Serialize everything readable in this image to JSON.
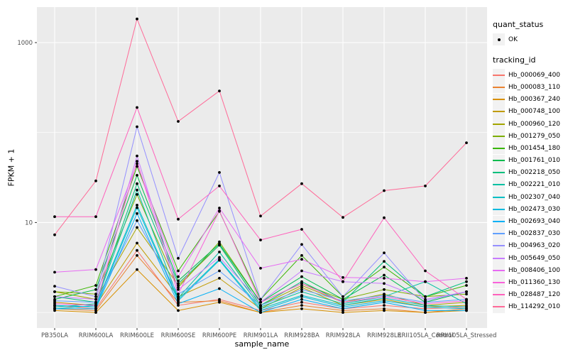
{
  "figure": {
    "panel_bg": "#EBEBEB",
    "grid_color": "#FFFFFF",
    "tick_color": "#333333",
    "tick_label_color": "#4D4D4D",
    "point_color": "#000000"
  },
  "chart_data": {
    "type": "line",
    "x_label": "sample_name",
    "y_label": "FPKM + 1",
    "y_scale": "log10",
    "y_axis_range_approx": [
      0.9,
      2400
    ],
    "y_ticks": [
      {
        "value": 10,
        "label": "10"
      },
      {
        "value": 1000,
        "label": "1000"
      }
    ],
    "y_minor_gridlines": [
      1,
      100
    ],
    "grid": "on",
    "legend_position": "right",
    "categories": [
      "PB350LA",
      "RRIM600LA",
      "RRIM600LE",
      "RRIM600SE",
      "RRIM600PE",
      "RRIM901LA",
      "RRIM928BA",
      "RRIM928LA",
      "RRIM928LE",
      "RRII105LA_Control",
      "RRII105LA_Stressed"
    ],
    "series": [
      {
        "name": "Hb_000069_400",
        "color": "#F8766D",
        "values": [
          1.2,
          1.1,
          4.9,
          1.2,
          1.4,
          1.05,
          1.3,
          1.1,
          1.2,
          1.1,
          1.15
        ]
      },
      {
        "name": "Hb_000083_110",
        "color": "#EA8331",
        "values": [
          1.1,
          1.05,
          4.3,
          1.3,
          1.35,
          1.0,
          1.2,
          1.05,
          1.1,
          1.0,
          1.1
        ]
      },
      {
        "name": "Hb_000367_240",
        "color": "#D89000",
        "values": [
          1.05,
          1.0,
          3.0,
          1.05,
          1.3,
          1.0,
          1.1,
          1.0,
          1.05,
          1.0,
          1.05
        ]
      },
      {
        "name": "Hb_000748_100",
        "color": "#C09B00",
        "values": [
          1.3,
          1.2,
          5.9,
          1.5,
          2.4,
          1.1,
          1.9,
          1.2,
          1.4,
          1.15,
          1.2
        ]
      },
      {
        "name": "Hb_000960_120",
        "color": "#A3A500",
        "values": [
          1.7,
          1.4,
          8.8,
          2.0,
          5.6,
          1.2,
          2.0,
          1.3,
          1.6,
          1.2,
          1.3
        ]
      },
      {
        "name": "Hb_001279_050",
        "color": "#7CAE00",
        "values": [
          1.7,
          1.6,
          20.5,
          1.9,
          6.1,
          1.3,
          2.1,
          1.4,
          1.8,
          1.5,
          1.6
        ]
      },
      {
        "name": "Hb_001454_180",
        "color": "#39B600",
        "values": [
          1.5,
          2.0,
          42,
          2.9,
          13.3,
          1.4,
          4.3,
          1.5,
          3.2,
          1.5,
          2.0
        ]
      },
      {
        "name": "Hb_001761_010",
        "color": "#00BB4E",
        "values": [
          1.4,
          1.8,
          33.5,
          2.25,
          5.8,
          1.3,
          2.5,
          1.4,
          2.6,
          1.3,
          1.7
        ]
      },
      {
        "name": "Hb_002218_050",
        "color": "#00BF7D",
        "values": [
          1.5,
          1.3,
          27,
          2.1,
          5.6,
          1.2,
          2.2,
          1.3,
          3.7,
          1.5,
          2.2
        ]
      },
      {
        "name": "Hb_002221_010",
        "color": "#00C1A3",
        "values": [
          1.15,
          1.25,
          23,
          1.45,
          4.7,
          1.15,
          1.7,
          1.25,
          1.5,
          2.2,
          1.25
        ]
      },
      {
        "name": "Hb_002307_040",
        "color": "#00BFC4",
        "values": [
          1.1,
          1.2,
          15.6,
          1.4,
          3.9,
          1.1,
          1.55,
          1.2,
          1.45,
          1.2,
          1.15
        ]
      },
      {
        "name": "Hb_002473_030",
        "color": "#00BADE",
        "values": [
          1.2,
          1.15,
          14.6,
          1.35,
          3.8,
          1.05,
          1.5,
          1.15,
          1.35,
          1.15,
          1.1
        ]
      },
      {
        "name": "Hb_002693_040",
        "color": "#00B0F6",
        "values": [
          1.1,
          1.1,
          12.6,
          1.25,
          1.84,
          1.0,
          1.4,
          1.1,
          1.3,
          1.05,
          1.05
        ]
      },
      {
        "name": "Hb_002837_030",
        "color": "#61A0FF",
        "values": [
          1.35,
          1.3,
          10.5,
          1.6,
          2.9,
          1.2,
          1.8,
          1.35,
          1.55,
          1.3,
          1.4
        ]
      },
      {
        "name": "Hb_004963_020",
        "color": "#9590FF",
        "values": [
          1.96,
          1.5,
          116,
          4.0,
          36,
          1.4,
          5.7,
          1.5,
          4.6,
          1.35,
          1.7
        ]
      },
      {
        "name": "Hb_005649_050",
        "color": "#C77CFF",
        "values": [
          1.5,
          1.4,
          55,
          1.8,
          4.1,
          1.3,
          2.9,
          2.2,
          2.1,
          1.4,
          1.7
        ]
      },
      {
        "name": "Hb_008406_100",
        "color": "#E76BF3",
        "values": [
          2.8,
          3.0,
          45,
          2.5,
          14.5,
          3.1,
          3.9,
          2.45,
          2.4,
          2.2,
          2.4
        ]
      },
      {
        "name": "Hb_011360_130",
        "color": "#FA62DB",
        "values": [
          1.25,
          1.2,
          48,
          1.6,
          13.5,
          1.3,
          2.1,
          1.3,
          1.5,
          1.25,
          1.35
        ]
      },
      {
        "name": "Hb_028487_120",
        "color": "#FF62BC",
        "values": [
          11.6,
          11.6,
          190,
          10.9,
          25.5,
          6.4,
          8.4,
          2.2,
          11.3,
          2.9,
          1.4
        ]
      },
      {
        "name": "Hb_114292_010",
        "color": "#FF6A98",
        "values": [
          7.3,
          29,
          1830,
          133,
          290,
          11.8,
          27,
          11.4,
          22.6,
          25.5,
          77
        ]
      }
    ],
    "legend": {
      "quant_title": "quant_status",
      "quant_items": [
        {
          "label": "OK"
        }
      ],
      "tracking_title": "tracking_id"
    }
  }
}
